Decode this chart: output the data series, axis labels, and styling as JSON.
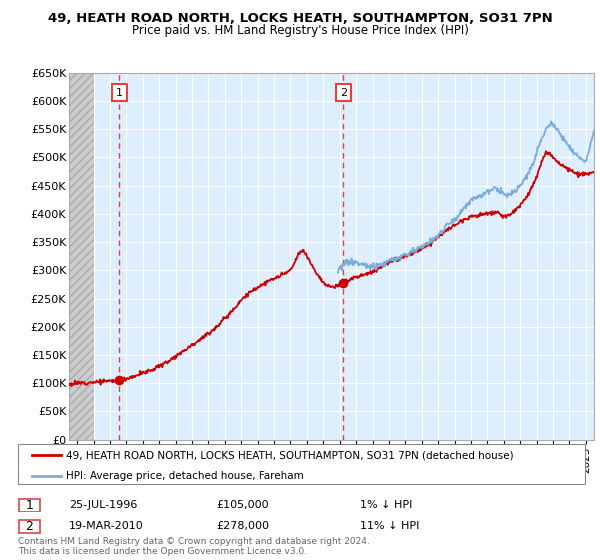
{
  "title_line1": "49, HEATH ROAD NORTH, LOCKS HEATH, SOUTHAMPTON, SO31 7PN",
  "title_line2": "Price paid vs. HM Land Registry's House Price Index (HPI)",
  "ylim": [
    0,
    650000
  ],
  "yticks": [
    0,
    50000,
    100000,
    150000,
    200000,
    250000,
    300000,
    350000,
    400000,
    450000,
    500000,
    550000,
    600000,
    650000
  ],
  "ytick_labels": [
    "£0",
    "£50K",
    "£100K",
    "£150K",
    "£200K",
    "£250K",
    "£300K",
    "£350K",
    "£400K",
    "£450K",
    "£500K",
    "£550K",
    "£600K",
    "£650K"
  ],
  "plot_bg_color": "#ddeeff",
  "sale1": {
    "date_num": 1996.56,
    "price": 105000,
    "label": "1",
    "date_str": "25-JUL-1996",
    "price_str": "£105,000",
    "hpi_str": "1% ↓ HPI"
  },
  "sale2": {
    "date_num": 2010.22,
    "price": 278000,
    "label": "2",
    "date_str": "19-MAR-2010",
    "price_str": "£278,000",
    "hpi_str": "11% ↓ HPI"
  },
  "red_color": "#cc0000",
  "blue_color": "#7aaddb",
  "dashed_line_color": "#dd4444",
  "legend_label_red": "49, HEATH ROAD NORTH, LOCKS HEATH, SOUTHAMPTON, SO31 7PN (detached house)",
  "legend_label_blue": "HPI: Average price, detached house, Fareham",
  "footnote1": "Contains HM Land Registry data © Crown copyright and database right 2024.",
  "footnote2": "This data is licensed under the Open Government Licence v3.0.",
  "xlim_start": 1993.5,
  "xlim_end": 2025.5,
  "hatch_end": 1995.0,
  "hpi_start_year": 2009.9
}
